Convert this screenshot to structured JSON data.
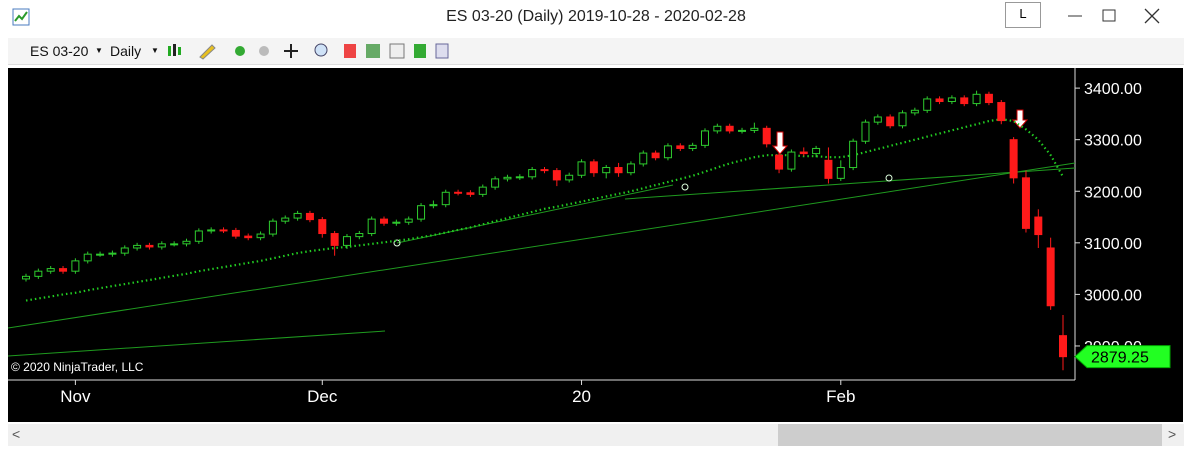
{
  "window": {
    "title": "ES 03-20 (Daily)  2019-10-28 - 2020-02-28",
    "instrument": "ES 03-20",
    "interval": "Daily",
    "layout_button": "L"
  },
  "chart_data": {
    "type": "candlestick",
    "annotation": "© 2020 NinjaTrader, LLC",
    "categories": [
      null,
      null,
      null,
      null,
      "Nov",
      null,
      null,
      null,
      null,
      null,
      null,
      null,
      null,
      null,
      null,
      null,
      null,
      null,
      null,
      null,
      null,
      null,
      null,
      null,
      "Dec",
      null,
      null,
      null,
      null,
      null,
      null,
      null,
      null,
      null,
      null,
      null,
      null,
      null,
      null,
      null,
      null,
      null,
      null,
      null,
      null,
      "20",
      null,
      null,
      null,
      null,
      null,
      null,
      null,
      null,
      null,
      null,
      null,
      null,
      null,
      null,
      null,
      null,
      null,
      null,
      null,
      null,
      "Feb",
      null,
      null,
      null,
      null,
      null,
      null,
      null,
      null,
      null,
      null,
      null,
      null,
      null,
      null,
      null,
      null,
      null,
      null
    ],
    "open": [
      3030,
      3035,
      3045,
      3050,
      3045,
      3065,
      3078,
      3078,
      3080,
      3090,
      3095,
      3092,
      3098,
      3098,
      3103,
      3123,
      3125,
      3124,
      3113,
      3110,
      3117,
      3142,
      3148,
      3157,
      3145,
      3118,
      3095,
      3112,
      3118,
      3146,
      3138,
      3140,
      3146,
      3172,
      3174,
      3198,
      3197,
      3194,
      3208,
      3224,
      3227,
      3228,
      3242,
      3240,
      3222,
      3231,
      3257,
      3236,
      3246,
      3236,
      3253,
      3274,
      3265,
      3288,
      3283,
      3289,
      3317,
      3326,
      3317,
      3318,
      3322,
      3270,
      3243,
      3276,
      3273,
      3260,
      3225,
      3246,
      3297,
      3334,
      3344,
      3327,
      3352,
      3357,
      3379,
      3374,
      3381,
      3370,
      3388,
      3372,
      3300,
      3226,
      3150,
      3090,
      2920
    ],
    "high": [
      3040,
      3050,
      3055,
      3055,
      3070,
      3083,
      3083,
      3085,
      3095,
      3100,
      3100,
      3103,
      3103,
      3108,
      3128,
      3130,
      3130,
      3129,
      3118,
      3122,
      3147,
      3153,
      3162,
      3162,
      3150,
      3123,
      3117,
      3123,
      3151,
      3151,
      3145,
      3151,
      3177,
      3182,
      3203,
      3203,
      3202,
      3213,
      3229,
      3232,
      3233,
      3247,
      3247,
      3245,
      3236,
      3262,
      3262,
      3251,
      3255,
      3258,
      3279,
      3279,
      3293,
      3293,
      3294,
      3322,
      3331,
      3331,
      3323,
      3333,
      3327,
      3275,
      3281,
      3285,
      3288,
      3285,
      3260,
      3302,
      3339,
      3349,
      3349,
      3357,
      3362,
      3384,
      3384,
      3386,
      3386,
      3395,
      3393,
      3377,
      3305,
      3240,
      3165,
      3110,
      2960
    ],
    "low": [
      3025,
      3030,
      3040,
      3040,
      3040,
      3060,
      3073,
      3073,
      3075,
      3085,
      3087,
      3087,
      3093,
      3093,
      3098,
      3118,
      3119,
      3108,
      3105,
      3105,
      3112,
      3137,
      3143,
      3140,
      3110,
      3075,
      3088,
      3107,
      3113,
      3133,
      3133,
      3135,
      3141,
      3167,
      3169,
      3192,
      3189,
      3189,
      3203,
      3219,
      3222,
      3223,
      3235,
      3210,
      3217,
      3226,
      3228,
      3225,
      3228,
      3231,
      3248,
      3260,
      3260,
      3278,
      3278,
      3284,
      3312,
      3312,
      3312,
      3313,
      3285,
      3235,
      3238,
      3268,
      3266,
      3215,
      3220,
      3241,
      3292,
      3329,
      3322,
      3322,
      3347,
      3352,
      3369,
      3369,
      3365,
      3365,
      3367,
      3330,
      3215,
      3120,
      3090,
      2970,
      2853
    ],
    "close": [
      3035,
      3045,
      3050,
      3045,
      3065,
      3078,
      3078,
      3080,
      3090,
      3095,
      3092,
      3098,
      3098,
      3103,
      3123,
      3125,
      3124,
      3113,
      3110,
      3117,
      3142,
      3148,
      3157,
      3145,
      3118,
      3095,
      3112,
      3118,
      3146,
      3138,
      3140,
      3146,
      3172,
      3174,
      3198,
      3197,
      3194,
      3208,
      3224,
      3227,
      3228,
      3242,
      3240,
      3222,
      3231,
      3257,
      3236,
      3246,
      3236,
      3253,
      3274,
      3265,
      3288,
      3283,
      3289,
      3317,
      3326,
      3317,
      3318,
      3322,
      3292,
      3243,
      3276,
      3273,
      3283,
      3225,
      3246,
      3297,
      3334,
      3344,
      3327,
      3352,
      3357,
      3379,
      3374,
      3381,
      3370,
      3388,
      3372,
      3337,
      3226,
      3128,
      3116,
      2978,
      2879.25
    ],
    "ma": {
      "color": "#22cc22",
      "values": [
        2988,
        2992,
        2996,
        3000,
        3003,
        3008,
        3012,
        3016,
        3020,
        3024,
        3028,
        3032,
        3036,
        3040,
        3045,
        3049,
        3053,
        3057,
        3061,
        3065,
        3070,
        3075,
        3080,
        3084,
        3087,
        3090,
        3092,
        3095,
        3098,
        3101,
        3104,
        3107,
        3111,
        3115,
        3120,
        3125,
        3130,
        3136,
        3142,
        3148,
        3154,
        3160,
        3166,
        3170,
        3175,
        3180,
        3185,
        3190,
        3195,
        3200,
        3206,
        3212,
        3218,
        3224,
        3230,
        3238,
        3246,
        3254,
        3260,
        3266,
        3270,
        3270,
        3270,
        3268,
        3268,
        3266,
        3266,
        3270,
        3276,
        3282,
        3288,
        3294,
        3300,
        3306,
        3312,
        3318,
        3324,
        3330,
        3336,
        3340,
        3336,
        3320,
        3300,
        3270,
        3228
      ]
    },
    "up_color": "#2ecc2e",
    "down_color": "#ff1a1a",
    "last_color": "#22ff22",
    "ylim": [
      2834,
      3439
    ],
    "yticks": [
      {
        "value": 2900,
        "label": "2900.00"
      },
      {
        "value": 3000,
        "label": "3000.00"
      },
      {
        "value": 3100,
        "label": "3100.00"
      },
      {
        "value": 3200,
        "label": "3200.00"
      },
      {
        "value": 3300,
        "label": "3300.00"
      },
      {
        "value": 3400,
        "label": "3400.00"
      }
    ]
  }
}
